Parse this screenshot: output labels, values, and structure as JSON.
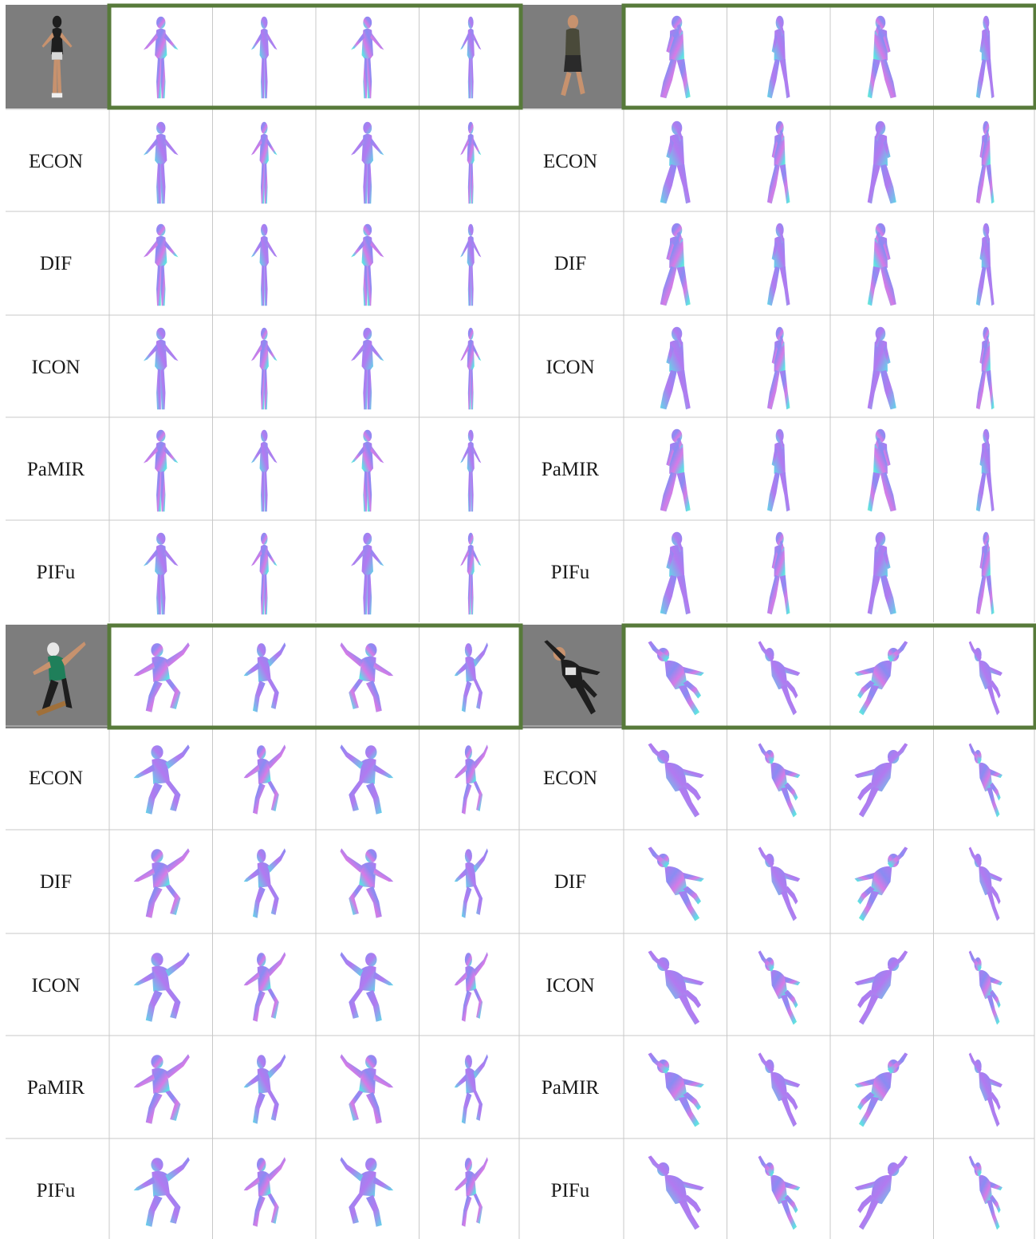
{
  "figure": {
    "background": "#ffffff",
    "grid_line_color": "#c8c8c8",
    "highlight_border_color": "#577a3a",
    "input_background_color": "#7d7d7d",
    "mesh_colors": [
      "#8a8cf2",
      "#b27af0",
      "#d77ae6",
      "#5fd9e8",
      "#7ff0c8"
    ],
    "blocks": [
      {
        "input_photo_icon": "woman-standing-photo",
        "subject_pose": "standing",
        "rows": [
          {
            "label": "",
            "kind": "ground-truth"
          },
          {
            "label": "ECON",
            "kind": "method"
          },
          {
            "label": "DIF",
            "kind": "method"
          },
          {
            "label": "ICON",
            "kind": "method"
          },
          {
            "label": "PaMIR",
            "kind": "method"
          },
          {
            "label": "PIFu",
            "kind": "method"
          }
        ]
      },
      {
        "input_photo_icon": "man-walking-photo",
        "subject_pose": "walking",
        "rows": [
          {
            "label": "",
            "kind": "ground-truth"
          },
          {
            "label": "ECON",
            "kind": "method"
          },
          {
            "label": "DIF",
            "kind": "method"
          },
          {
            "label": "ICON",
            "kind": "method"
          },
          {
            "label": "PaMIR",
            "kind": "method"
          },
          {
            "label": "PIFu",
            "kind": "method"
          }
        ]
      },
      {
        "input_photo_icon": "skateboarder-photo",
        "subject_pose": "skate-jump",
        "rows": [
          {
            "label": "",
            "kind": "ground-truth"
          },
          {
            "label": "ECON",
            "kind": "method"
          },
          {
            "label": "DIF",
            "kind": "method"
          },
          {
            "label": "ICON",
            "kind": "method"
          },
          {
            "label": "PaMIR",
            "kind": "method"
          },
          {
            "label": "PIFu",
            "kind": "method"
          }
        ]
      },
      {
        "input_photo_icon": "man-leaping-photo",
        "subject_pose": "leap",
        "rows": [
          {
            "label": "",
            "kind": "ground-truth"
          },
          {
            "label": "ECON",
            "kind": "method"
          },
          {
            "label": "DIF",
            "kind": "method"
          },
          {
            "label": "ICON",
            "kind": "method"
          },
          {
            "label": "PaMIR",
            "kind": "method"
          },
          {
            "label": "PIFu",
            "kind": "method"
          }
        ]
      }
    ],
    "views_per_row": 4,
    "view_icon": "human-mesh-render-icon"
  }
}
